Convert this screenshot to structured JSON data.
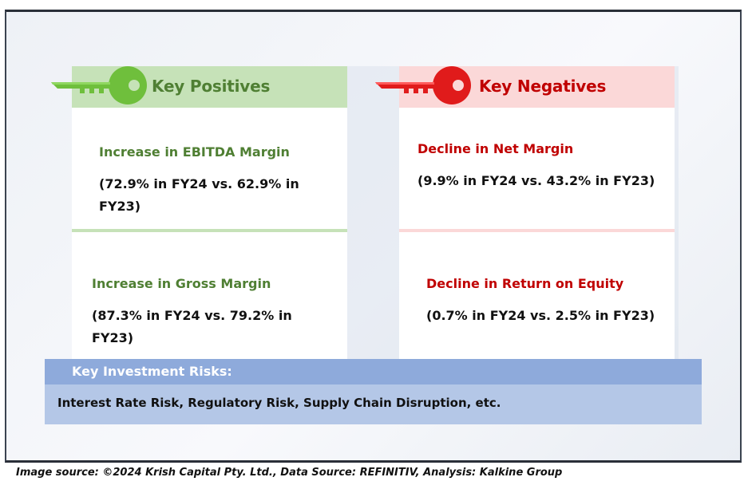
{
  "positives": {
    "title": "Key Positives",
    "color": "#4f7f33",
    "items": [
      {
        "metric": "Increase in EBITDA Margin",
        "detail": "(72.9% in FY24 vs. 62.9% in FY23)"
      },
      {
        "metric": "Increase in Gross Margin",
        "detail": "(87.3% in FY24 vs. 79.2% in FY23)"
      }
    ]
  },
  "negatives": {
    "title": "Key Negatives",
    "color": "#c00000",
    "items": [
      {
        "metric": "Decline in Net Margin",
        "detail": "(9.9% in FY24 vs. 43.2% in FY23)"
      },
      {
        "metric": "Decline in Return on Equity",
        "detail": "(0.7% in FY24 vs. 2.5% in FY23)"
      }
    ]
  },
  "risks": {
    "title": "Key Investment Risks:",
    "text": "Interest Rate Risk, Regulatory Risk, Supply Chain Disruption, etc."
  },
  "caption": "Image source: ©2024 Krish Capital Pty. Ltd., Data Source: REFINITIV, Analysis: Kalkine Group",
  "icons": {
    "positives": "green-key-icon",
    "negatives": "red-key-icon"
  }
}
